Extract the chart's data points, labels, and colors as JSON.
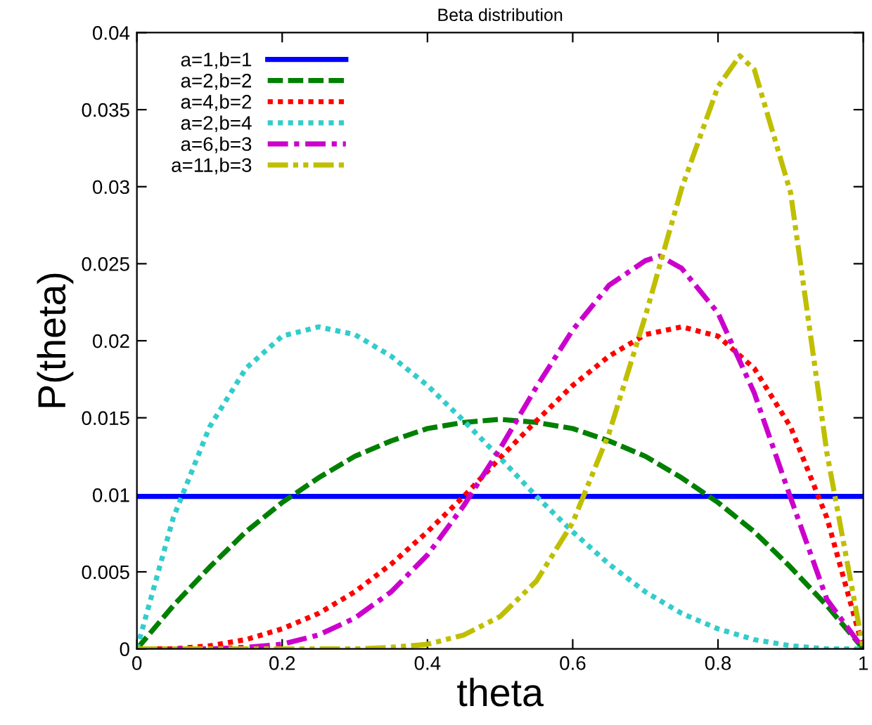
{
  "chart_data": {
    "type": "line",
    "title": "Beta distribution",
    "xlabel": "theta",
    "ylabel": "P(theta)",
    "xlim": [
      0,
      1
    ],
    "xticks": [
      0,
      0.2,
      0.4,
      0.6,
      0.8,
      1
    ],
    "ylim": [
      0,
      0.04
    ],
    "yticks": [
      0,
      0.005,
      0.01,
      0.015,
      0.02,
      0.025,
      0.03,
      0.035,
      0.04
    ],
    "grid": false,
    "legend": "top left",
    "marker": "none",
    "series": [
      {
        "name": "a=1,b=1",
        "color": "#0000ff",
        "line_style": "solid",
        "x": [
          0,
          1
        ],
        "values": [
          0.0099,
          0.0099
        ]
      },
      {
        "name": "a=2,b=2",
        "color": "#008000",
        "line_style": "dashed",
        "x": [
          0,
          0.05,
          0.1,
          0.15,
          0.2,
          0.25,
          0.3,
          0.35,
          0.4,
          0.45,
          0.5,
          0.55,
          0.6,
          0.65,
          0.7,
          0.75,
          0.8,
          0.85,
          0.9,
          0.95,
          1
        ],
        "values": [
          0,
          0.0028,
          0.0053,
          0.0076,
          0.0095,
          0.0111,
          0.0125,
          0.0135,
          0.0143,
          0.0147,
          0.0149,
          0.0147,
          0.0143,
          0.0135,
          0.0125,
          0.0111,
          0.0095,
          0.0076,
          0.0053,
          0.0028,
          0
        ]
      },
      {
        "name": "a=4,b=2",
        "color": "#ff0000",
        "line_style": "dotted",
        "x": [
          0,
          0.05,
          0.1,
          0.15,
          0.2,
          0.25,
          0.3,
          0.35,
          0.4,
          0.45,
          0.5,
          0.55,
          0.6,
          0.65,
          0.7,
          0.75,
          0.8,
          0.85,
          0.9,
          0.95,
          1
        ],
        "values": [
          0,
          0.0,
          0.0002,
          0.0006,
          0.0013,
          0.0023,
          0.0037,
          0.0055,
          0.0076,
          0.0099,
          0.0124,
          0.0148,
          0.0171,
          0.019,
          0.0204,
          0.0209,
          0.0203,
          0.0182,
          0.0144,
          0.0085,
          0
        ]
      },
      {
        "name": "a=2,b=4",
        "color": "#33cccc",
        "line_style": "dotted",
        "x": [
          0,
          0.05,
          0.1,
          0.15,
          0.2,
          0.25,
          0.3,
          0.35,
          0.4,
          0.45,
          0.5,
          0.55,
          0.6,
          0.65,
          0.7,
          0.75,
          0.8,
          0.85,
          0.9,
          0.95,
          1
        ],
        "values": [
          0,
          0.0085,
          0.0144,
          0.0182,
          0.0203,
          0.0209,
          0.0204,
          0.019,
          0.0171,
          0.0148,
          0.0124,
          0.0099,
          0.0076,
          0.0055,
          0.0037,
          0.0023,
          0.0013,
          0.0006,
          0.0002,
          0.0,
          0
        ]
      },
      {
        "name": "a=6,b=3",
        "color": "#cc00cc",
        "line_style": "dashdot",
        "x": [
          0,
          0.1,
          0.15,
          0.2,
          0.25,
          0.3,
          0.35,
          0.4,
          0.45,
          0.5,
          0.55,
          0.6,
          0.65,
          0.7,
          0.72,
          0.75,
          0.8,
          0.85,
          0.9,
          0.95,
          1
        ],
        "values": [
          0,
          0.0,
          0.0001,
          0.0003,
          0.0009,
          0.002,
          0.0037,
          0.0061,
          0.0093,
          0.013,
          0.017,
          0.0207,
          0.0236,
          0.0252,
          0.0255,
          0.0247,
          0.0218,
          0.0166,
          0.0098,
          0.0032,
          0
        ]
      },
      {
        "name": "a=11,b=3",
        "color": "#bfbf00",
        "line_style": "dashdotdot",
        "x": [
          0,
          0.3,
          0.35,
          0.4,
          0.45,
          0.5,
          0.55,
          0.6,
          0.65,
          0.7,
          0.75,
          0.8,
          0.83,
          0.85,
          0.9,
          0.95,
          1
        ],
        "values": [
          0,
          0,
          0.0001,
          0.0003,
          0.0009,
          0.0021,
          0.0044,
          0.0082,
          0.014,
          0.0216,
          0.0299,
          0.0365,
          0.0385,
          0.0376,
          0.0296,
          0.0127,
          0
        ]
      }
    ]
  }
}
